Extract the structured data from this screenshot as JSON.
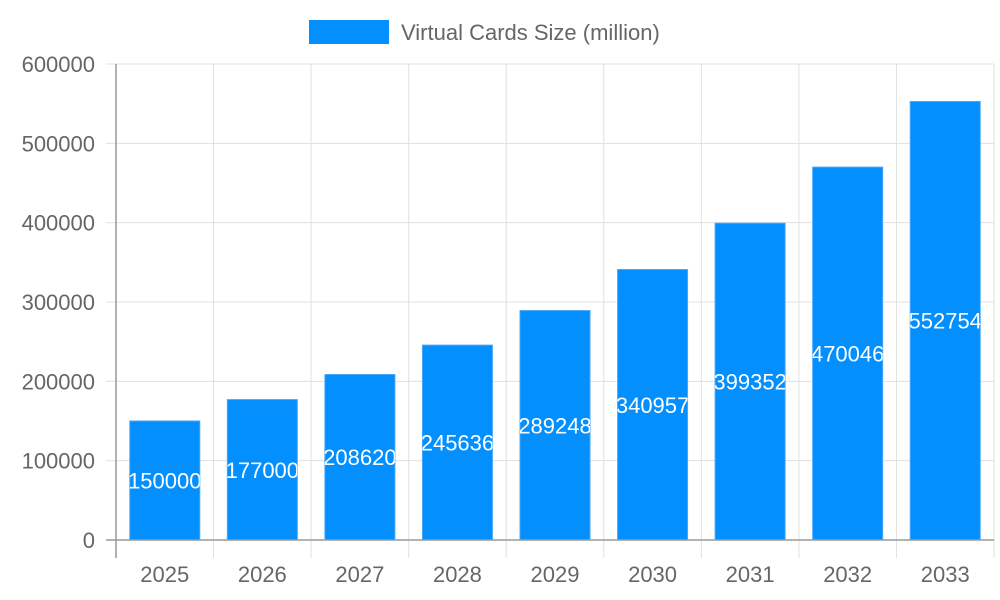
{
  "chart_data": {
    "type": "bar",
    "categories": [
      "2025",
      "2026",
      "2027",
      "2028",
      "2029",
      "2030",
      "2031",
      "2032",
      "2033"
    ],
    "series": [
      {
        "name": "Virtual Cards Size (million)",
        "values": [
          150000,
          177000,
          208620,
          245636,
          289248,
          340957,
          399352,
          470046,
          552754
        ],
        "color": "#038ffd"
      }
    ],
    "ylim": [
      0,
      600000
    ],
    "yticks": [
      0,
      100000,
      200000,
      300000,
      400000,
      500000,
      600000
    ],
    "grid": true,
    "legend": "top",
    "data_labels": true
  }
}
